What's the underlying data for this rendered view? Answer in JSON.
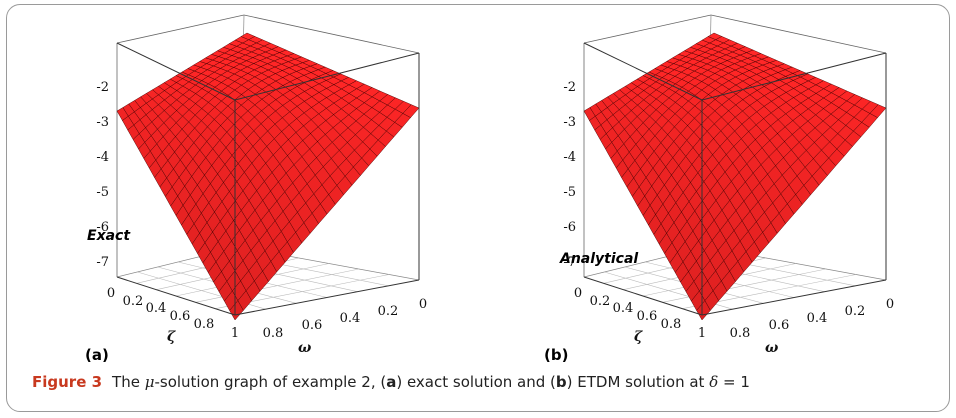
{
  "figure": {
    "caption": {
      "label": "Figure 3",
      "p1": "The ",
      "mu": "μ",
      "p2": "-solution graph of example 2, (",
      "a": "a",
      "p3": ") exact solution and (",
      "b": "b",
      "p4": ") ETDM solution at ",
      "delta": "δ",
      "p5": " = 1"
    },
    "panels": [
      {
        "id": "a",
        "panel_label": "(a)",
        "inset_label": "Exact",
        "surface_color": "#ff2a2a",
        "mesh_color": "#4a0000",
        "z_ticks": [
          "-2",
          "-3",
          "-4",
          "-5",
          "-6",
          "-7"
        ],
        "zeta_ticks": [
          "0",
          "0.2",
          "0.4",
          "0.6",
          "0.8",
          "1"
        ],
        "omega_ticks": [
          "0.8",
          "0.6",
          "0.4",
          "0.2",
          "0"
        ],
        "zeta_label": "ζ",
        "omega_label": "ω"
      },
      {
        "id": "b",
        "panel_label": "(b)",
        "inset_label": "Analytical",
        "surface_color": "#ff2a2a",
        "mesh_color": "#4a0000",
        "z_ticks": [
          "-2",
          "-3",
          "-4",
          "-5",
          "-6",
          "-7"
        ],
        "zeta_ticks": [
          "0",
          "0.2",
          "0.4",
          "0.6",
          "0.8",
          "1"
        ],
        "omega_ticks": [
          "0.8",
          "0.6",
          "0.4",
          "0.2",
          "0"
        ],
        "zeta_label": "ζ",
        "omega_label": "ω"
      }
    ]
  }
}
